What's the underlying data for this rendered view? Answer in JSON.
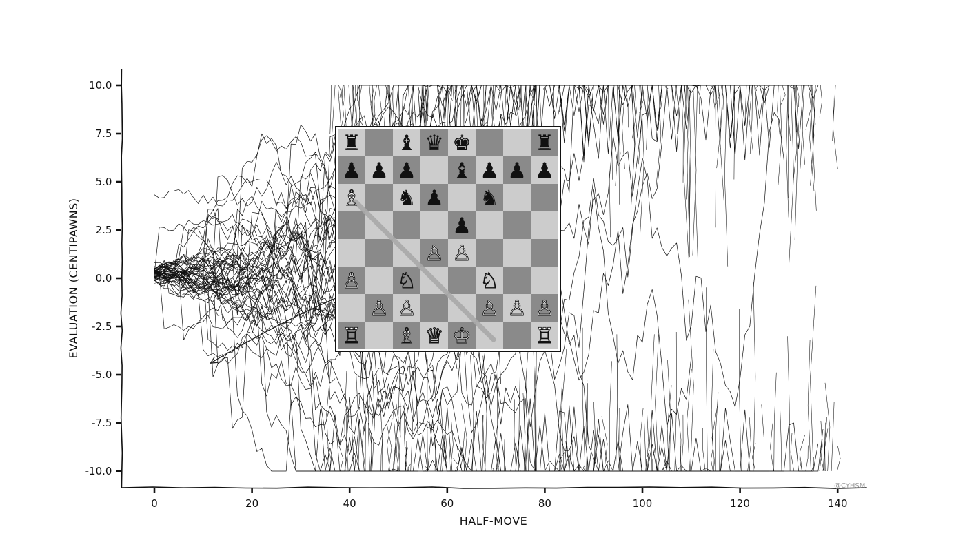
{
  "chart_data": {
    "type": "line",
    "title": "",
    "xlabel": "HALF-MOVE",
    "ylabel": "EVALUATION (CENTIPAWNS)",
    "xlim": [
      -7,
      146
    ],
    "ylim": [
      -11,
      11
    ],
    "x_ticks": [
      {
        "value": 0,
        "label": "0"
      },
      {
        "value": 20,
        "label": "20"
      },
      {
        "value": 40,
        "label": "40"
      },
      {
        "value": 60,
        "label": "60"
      },
      {
        "value": 80,
        "label": "80"
      },
      {
        "value": 100,
        "label": "100"
      },
      {
        "value": 120,
        "label": "120"
      },
      {
        "value": 140,
        "label": "140"
      }
    ],
    "y_ticks": [
      {
        "value": 10,
        "label": "10.0"
      },
      {
        "value": 7.5,
        "label": "7.5"
      },
      {
        "value": 5,
        "label": "5.0"
      },
      {
        "value": 2.5,
        "label": "2.5"
      },
      {
        "value": 0,
        "label": "0.0"
      },
      {
        "value": -2.5,
        "label": "-2.5"
      },
      {
        "value": -5,
        "label": "-5.0"
      },
      {
        "value": -7.5,
        "label": "-7.5"
      },
      {
        "value": -10,
        "label": "-10.0"
      }
    ],
    "evaluation_clip": [
      -10,
      10
    ],
    "series_style": {
      "color": "#111111",
      "width": 0.7
    },
    "style": "xkcd",
    "grid": false,
    "legend": "none",
    "annotation": {
      "from": {
        "x": 37.5,
        "y": -1.0
      },
      "to": {
        "x": 11.5,
        "y": -4.4
      },
      "arrow": true
    },
    "inset": {
      "type": "chess-board",
      "squares_light": "#cccccc",
      "squares_dark": "#8a8a8a",
      "highlight_move": {
        "from": "a6",
        "to": "f1",
        "color": "#a9a9a9"
      },
      "pieces": [
        {
          "square": "a8",
          "glyph": "♜",
          "color": "black"
        },
        {
          "square": "c8",
          "glyph": "♝",
          "color": "black"
        },
        {
          "square": "d8",
          "glyph": "♛",
          "color": "black"
        },
        {
          "square": "e8",
          "glyph": "♚",
          "color": "black"
        },
        {
          "square": "h8",
          "glyph": "♜",
          "color": "black"
        },
        {
          "square": "a7",
          "glyph": "♟",
          "color": "black"
        },
        {
          "square": "b7",
          "glyph": "♟",
          "color": "black"
        },
        {
          "square": "c7",
          "glyph": "♟",
          "color": "black"
        },
        {
          "square": "e7",
          "glyph": "♝",
          "color": "black"
        },
        {
          "square": "f7",
          "glyph": "♟",
          "color": "black"
        },
        {
          "square": "g7",
          "glyph": "♟",
          "color": "black"
        },
        {
          "square": "h7",
          "glyph": "♟",
          "color": "black"
        },
        {
          "square": "a6",
          "glyph": "♗",
          "color": "white"
        },
        {
          "square": "c6",
          "glyph": "♞",
          "color": "black"
        },
        {
          "square": "d6",
          "glyph": "♟",
          "color": "black"
        },
        {
          "square": "f6",
          "glyph": "♞",
          "color": "black"
        },
        {
          "square": "e5",
          "glyph": "♟",
          "color": "black"
        },
        {
          "square": "d4",
          "glyph": "♙",
          "color": "white"
        },
        {
          "square": "e4",
          "glyph": "♙",
          "color": "white"
        },
        {
          "square": "a3",
          "glyph": "♙",
          "color": "white"
        },
        {
          "square": "c3",
          "glyph": "♘",
          "color": "white"
        },
        {
          "square": "f3",
          "glyph": "♘",
          "color": "white"
        },
        {
          "square": "b2",
          "glyph": "♙",
          "color": "white"
        },
        {
          "square": "c2",
          "glyph": "♙",
          "color": "white"
        },
        {
          "square": "f2",
          "glyph": "♙",
          "color": "white"
        },
        {
          "square": "g2",
          "glyph": "♙",
          "color": "white"
        },
        {
          "square": "h2",
          "glyph": "♙",
          "color": "white"
        },
        {
          "square": "a1",
          "glyph": "♖",
          "color": "white"
        },
        {
          "square": "c1",
          "glyph": "♗",
          "color": "white"
        },
        {
          "square": "d1",
          "glyph": "♕",
          "color": "white"
        },
        {
          "square": "e1",
          "glyph": "♔",
          "color": "white"
        },
        {
          "square": "h1",
          "glyph": "♖",
          "color": "white"
        }
      ]
    }
  },
  "credit": "@CYHSM"
}
